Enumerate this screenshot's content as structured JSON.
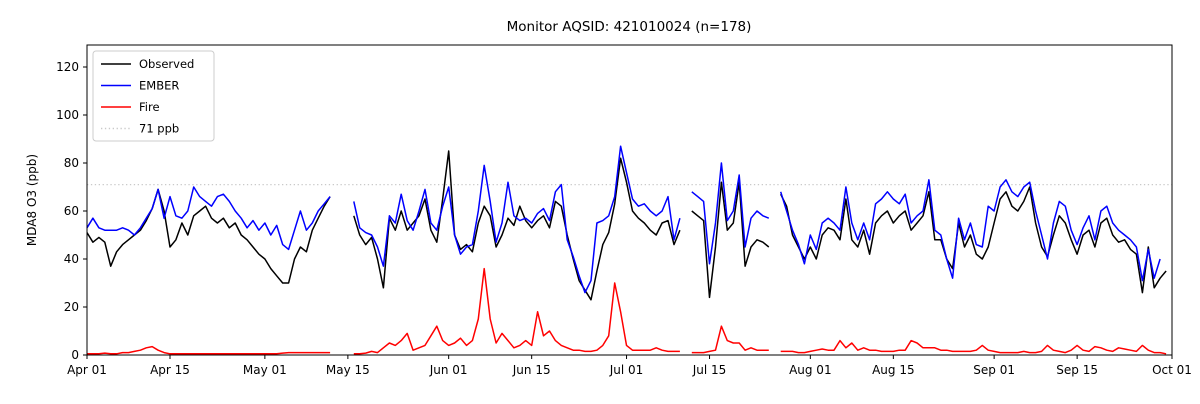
{
  "chart_data": {
    "type": "line",
    "title": "Monitor AQSID: 421010024 (n=178)",
    "xlabel": "",
    "ylabel": "MDA8 O3 (ppb)",
    "ylim": [
      0,
      129
    ],
    "yticks": [
      0,
      20,
      40,
      60,
      80,
      100,
      120
    ],
    "xtick_labels": [
      "Apr 01",
      "Apr 15",
      "May 01",
      "May 15",
      "Jun 01",
      "Jun 15",
      "Jul 01",
      "Jul 15",
      "Aug 01",
      "Aug 15",
      "Sep 01",
      "Sep 15",
      "Oct 01"
    ],
    "xtick_days": [
      0,
      14,
      30,
      44,
      61,
      75,
      91,
      105,
      122,
      136,
      153,
      167,
      183
    ],
    "x_total_days": 183,
    "x_unit": "day",
    "x_range_labels": [
      "Apr 01",
      "Oct 01"
    ],
    "grid": false,
    "legend_position": "upper left",
    "threshold": {
      "value": 71,
      "label": "71 ppb",
      "color": "#c9c9c9",
      "style": "dotted"
    },
    "missing_day_indices": [
      42,
      43,
      44,
      101,
      116
    ],
    "series": [
      {
        "name": "Observed",
        "color": "#000000",
        "values": [
          51,
          47,
          49,
          47,
          37,
          43,
          46,
          48,
          50,
          52,
          56,
          61,
          69,
          60,
          45,
          48,
          55,
          50,
          58,
          60,
          62,
          57,
          55,
          57,
          53,
          55,
          50,
          48,
          45,
          42,
          40,
          36,
          33,
          30,
          30,
          40,
          45,
          43,
          52,
          57,
          62,
          66,
          null,
          null,
          null,
          58,
          50,
          46,
          49,
          40,
          28,
          57,
          52,
          60,
          52,
          55,
          58,
          65,
          52,
          47,
          65,
          85,
          50,
          44,
          46,
          43,
          55,
          62,
          58,
          45,
          50,
          57,
          54,
          62,
          56,
          53,
          56,
          58,
          53,
          64,
          62,
          50,
          40,
          31,
          27,
          23,
          35,
          46,
          51,
          63,
          82,
          72,
          60,
          57,
          55,
          52,
          50,
          55,
          56,
          46,
          52,
          null,
          60,
          58,
          56,
          24,
          45,
          72,
          52,
          55,
          72,
          37,
          45,
          48,
          47,
          45,
          null,
          67,
          62,
          50,
          45,
          40,
          45,
          40,
          50,
          53,
          52,
          48,
          65,
          48,
          45,
          52,
          42,
          55,
          58,
          60,
          55,
          58,
          60,
          52,
          55,
          58,
          68,
          48,
          48,
          40,
          36,
          55,
          45,
          50,
          42,
          40,
          45,
          55,
          65,
          68,
          62,
          60,
          64,
          70,
          55,
          45,
          41,
          50,
          58,
          55,
          48,
          42,
          50,
          52,
          45,
          55,
          57,
          50,
          47,
          48,
          44,
          42,
          26,
          45,
          28,
          32,
          35
        ]
      },
      {
        "name": "EMBER",
        "color": "#0000ff",
        "values": [
          53,
          57,
          53,
          52,
          52,
          52,
          53,
          52,
          50,
          53,
          57,
          61,
          69,
          57,
          66,
          58,
          57,
          60,
          70,
          66,
          64,
          62,
          66,
          67,
          64,
          60,
          57,
          53,
          56,
          52,
          55,
          50,
          54,
          46,
          44,
          52,
          60,
          52,
          55,
          60,
          63,
          66,
          null,
          null,
          null,
          64,
          53,
          51,
          50,
          45,
          37,
          58,
          55,
          67,
          56,
          52,
          60,
          69,
          55,
          52,
          62,
          70,
          50,
          42,
          45,
          46,
          60,
          79,
          64,
          47,
          55,
          72,
          58,
          56,
          57,
          55,
          59,
          61,
          56,
          68,
          71,
          48,
          41,
          33,
          26,
          31,
          55,
          56,
          58,
          66,
          87,
          76,
          65,
          62,
          63,
          60,
          58,
          60,
          66,
          48,
          57,
          null,
          68,
          66,
          64,
          38,
          55,
          80,
          56,
          60,
          75,
          45,
          57,
          60,
          58,
          57,
          null,
          68,
          60,
          52,
          46,
          38,
          50,
          44,
          55,
          57,
          55,
          52,
          70,
          55,
          48,
          55,
          48,
          63,
          65,
          68,
          65,
          63,
          67,
          55,
          58,
          60,
          73,
          52,
          50,
          40,
          32,
          57,
          48,
          55,
          46,
          45,
          62,
          60,
          70,
          73,
          68,
          66,
          70,
          72,
          60,
          50,
          40,
          55,
          64,
          62,
          52,
          46,
          53,
          58,
          48,
          60,
          62,
          55,
          52,
          50,
          48,
          45,
          31,
          44,
          32,
          40,
          null
        ]
      },
      {
        "name": "Fire",
        "color": "#ff0000",
        "values": [
          0.5,
          0.5,
          0.5,
          0.8,
          0.5,
          0.5,
          1,
          1,
          1.5,
          2,
          3,
          3.5,
          2,
          1,
          0.5,
          0.5,
          0.5,
          0.5,
          0.5,
          0.5,
          0.5,
          0.5,
          0.5,
          0.5,
          0.5,
          0.5,
          0.5,
          0.5,
          0.5,
          0.5,
          0.5,
          0.5,
          0.5,
          0.8,
          1,
          1,
          1,
          1,
          1,
          1,
          1,
          1,
          null,
          null,
          null,
          0.5,
          0.5,
          0.8,
          1.5,
          1,
          3,
          5,
          4,
          6,
          9,
          2,
          3,
          4,
          8,
          12,
          6,
          4,
          5,
          7,
          4,
          6,
          15,
          36,
          15,
          5,
          9,
          6,
          3,
          4,
          6,
          4,
          18,
          8,
          10,
          6,
          4,
          3,
          2,
          2,
          1.5,
          1.5,
          2,
          4,
          8,
          30,
          18,
          4,
          2,
          2,
          2,
          2,
          3,
          2,
          1.5,
          1.5,
          1.5,
          null,
          1,
          1,
          1,
          1.5,
          2,
          12,
          6,
          5,
          5,
          2,
          3,
          2,
          2,
          2,
          null,
          1.5,
          1.5,
          1.5,
          1,
          1,
          1.5,
          2,
          2.5,
          2,
          2,
          6,
          3,
          5,
          2,
          3,
          2,
          2,
          1.5,
          1.5,
          1.5,
          2,
          2,
          6,
          5,
          3,
          3,
          3,
          2,
          2,
          1.5,
          1.5,
          1.5,
          1.5,
          2,
          4,
          2,
          1.5,
          1,
          1,
          1,
          1,
          1.5,
          1,
          1,
          1.5,
          4,
          2,
          1.5,
          1,
          2,
          4,
          2,
          1.5,
          3.5,
          3,
          2,
          1.5,
          3,
          2.5,
          2,
          1.5,
          4,
          2,
          1,
          1,
          0.5
        ]
      }
    ],
    "legend_entries": [
      "Observed",
      "EMBER",
      "Fire",
      "71 ppb"
    ]
  }
}
